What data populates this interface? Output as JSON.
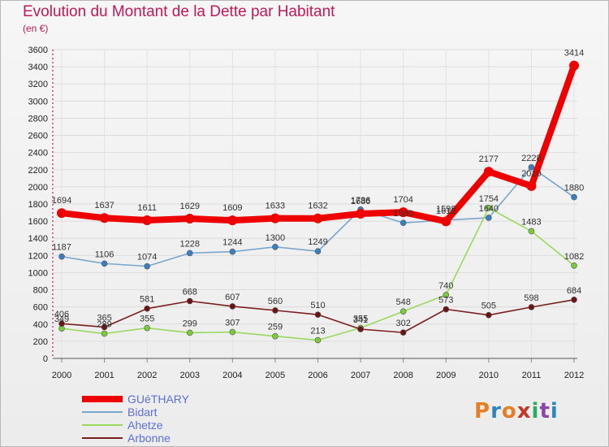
{
  "title": "Evolution du Montant de la Dette par Habitant",
  "unit": "(en €)",
  "logo": {
    "text": "Proxiti",
    "colors": [
      "#e67e22",
      "#2e86c1",
      "#e67e22",
      "#c0392b",
      "#27ae60",
      "#8e44ad",
      "#2e86c1"
    ]
  },
  "chart_data": {
    "type": "line",
    "title": "Evolution du Montant de la Dette par Habitant",
    "ylabel": "(en €)",
    "xlabel": "",
    "x": [
      "2000",
      "2001",
      "2002",
      "2003",
      "2004",
      "2005",
      "2006",
      "2007",
      "2008",
      "2009",
      "2010",
      "2011",
      "2012"
    ],
    "ylim": [
      0,
      3600
    ],
    "yticks": [
      "0",
      "200",
      "400",
      "600",
      "800",
      "1000",
      "1200",
      "1400",
      "1600",
      "1800",
      "2000",
      "2200",
      "2400",
      "2600",
      "2800",
      "3000",
      "3200",
      "3400",
      "3600"
    ],
    "grid": true,
    "legend": "bottom-left",
    "series": [
      {
        "name": "GUéTHARY",
        "color": "#ee0000",
        "point_color": "#ee0000",
        "thick": true,
        "values": [
          1694,
          1637,
          1611,
          1629,
          1609,
          1633,
          1632,
          1686,
          1704,
          1598,
          2177,
          2010,
          3414
        ]
      },
      {
        "name": "Bidart",
        "color": "#7aa6cc",
        "point_color": "#3a7fc0",
        "thick": false,
        "values": [
          1187,
          1106,
          1074,
          1228,
          1244,
          1300,
          1249,
          1736,
          1580,
          1612,
          1640,
          2228,
          1880
        ]
      },
      {
        "name": "Ahetze",
        "color": "#9ad860",
        "point_color": "#7ccc3a",
        "thick": false,
        "values": [
          349,
          289,
          355,
          299,
          307,
          259,
          213,
          355,
          548,
          740,
          1754,
          1483,
          1082
        ]
      },
      {
        "name": "Arbonne",
        "color": "#7a1f1f",
        "point_color": "#6b1414",
        "thick": false,
        "values": [
          406,
          365,
          581,
          668,
          607,
          560,
          510,
          341,
          302,
          573,
          505,
          598,
          684
        ]
      }
    ]
  }
}
